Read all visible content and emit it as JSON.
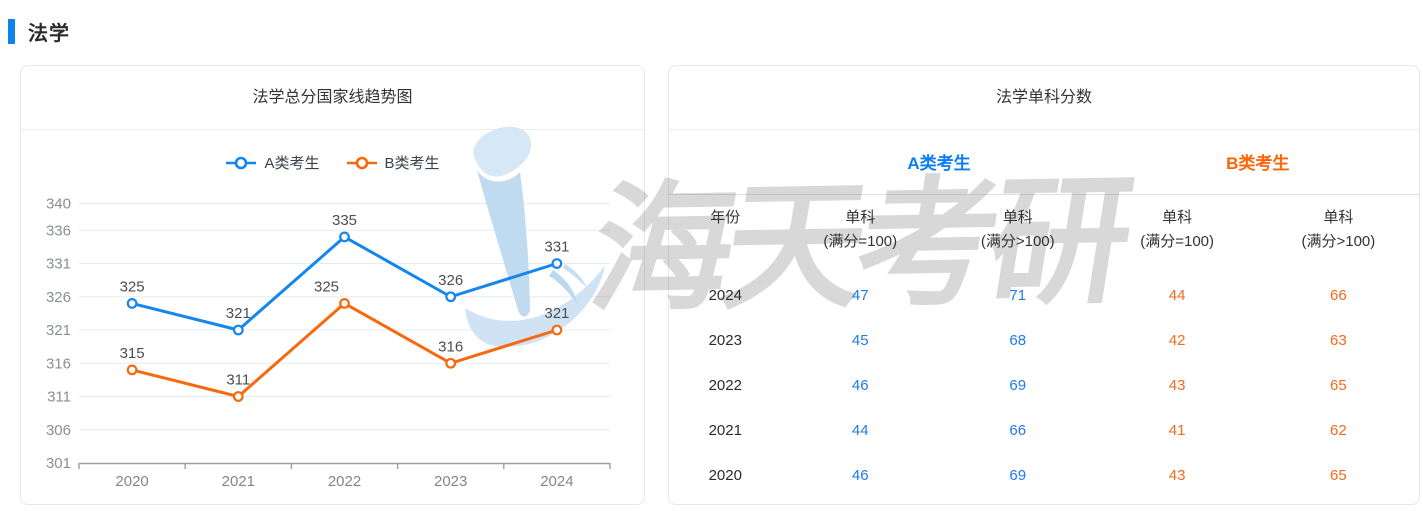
{
  "page": {
    "section_title": "法学"
  },
  "chart_panel": {
    "title": "法学总分国家线趋势图"
  },
  "chart_data": {
    "type": "line",
    "title": "法学总分国家线趋势图",
    "x": [
      "2020",
      "2021",
      "2022",
      "2023",
      "2024"
    ],
    "series": [
      {
        "name": "A类考生",
        "color": "#1486EC",
        "values": [
          325,
          321,
          335,
          326,
          331
        ]
      },
      {
        "name": "B类考生",
        "color": "#F7690C",
        "values": [
          315,
          311,
          325,
          316,
          321
        ]
      }
    ],
    "ylim": [
      301,
      341
    ],
    "yticks": [
      301,
      306,
      311,
      316,
      321,
      326,
      331,
      336,
      340
    ],
    "grid": true,
    "legend_position": "top-center",
    "point_labels": true,
    "marker": "hollow-circle"
  },
  "table_panel": {
    "title": "法学单科分数",
    "groups": [
      {
        "label": "A类考生",
        "color": "#0B7CF2"
      },
      {
        "label": "B类考生",
        "color": "#FB6605"
      }
    ],
    "columns": {
      "year": "年份",
      "cols": [
        {
          "l1": "单科",
          "l2": "(满分=100)"
        },
        {
          "l1": "单科",
          "l2": "(满分>100)"
        },
        {
          "l1": "单科",
          "l2": "(满分=100)"
        },
        {
          "l1": "单科",
          "l2": "(满分>100)"
        }
      ]
    },
    "rows": [
      [
        "2024",
        "47",
        "71",
        "44",
        "66"
      ],
      [
        "2023",
        "45",
        "68",
        "42",
        "63"
      ],
      [
        "2022",
        "46",
        "69",
        "43",
        "65"
      ],
      [
        "2021",
        "44",
        "66",
        "41",
        "62"
      ],
      [
        "2020",
        "46",
        "69",
        "43",
        "65"
      ]
    ]
  },
  "watermark": {
    "text": "海天考研",
    "logo": "haitian-sail-logo"
  },
  "colors": {
    "accent": "#0D84EE",
    "series_a": "#1486EC",
    "series_b": "#F7690C",
    "table_a": "#1E7BF0",
    "table_b": "#F5691A",
    "gridline": "#E5EBF5",
    "axis": "#9AA0A6"
  }
}
